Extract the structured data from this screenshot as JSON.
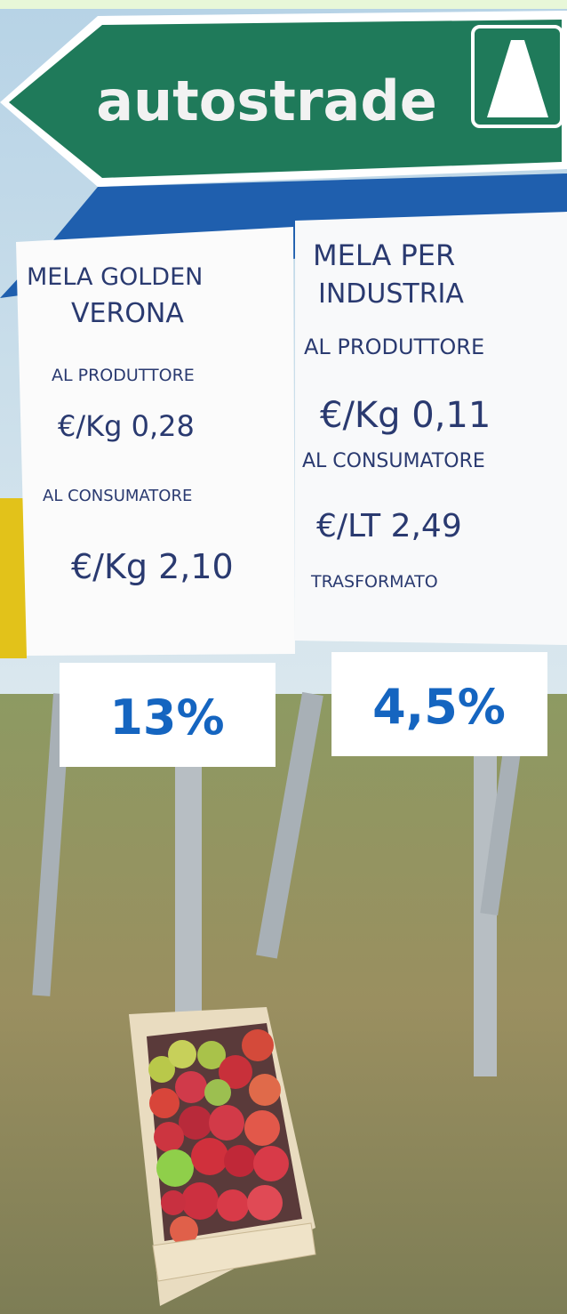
{
  "road_sign": {
    "text": "autostrade"
  },
  "left_sign": {
    "lines": [
      "MELA GOLDEN",
      "VERONA",
      "AL PRODUTTORE",
      "€/Kg 0,28",
      "AL CONSUMATORE",
      "€/Kg 2,10"
    ]
  },
  "right_sign": {
    "lines": [
      "MELA PER",
      "INDUSTRIA",
      "AL PRODUTTORE",
      "€/Kg 0,11",
      "AL CONSUMATORE",
      "€/LT 2,49",
      "TRASFORMATO"
    ]
  },
  "overlays": [
    "13%",
    "4,5%"
  ]
}
